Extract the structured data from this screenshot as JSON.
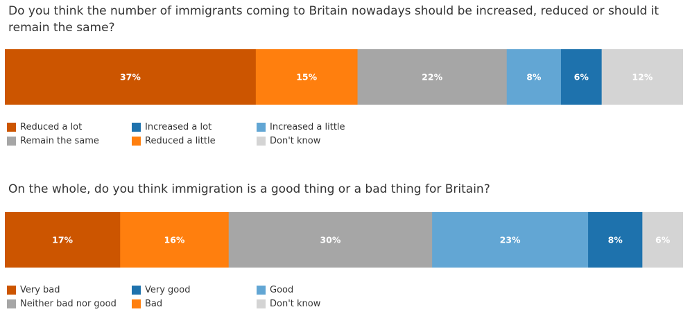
{
  "chart_data": [
    {
      "type": "bar",
      "orientation": "horizontal-stacked-100",
      "title": "Do you think the number of immigrants coming to Britain nowadays should be increased, reduced or should it remain the same?",
      "categories": [
        "Reduced a lot",
        "Reduced a little",
        "Remain the same",
        "Increased a little",
        "Increased a lot",
        "Don't know"
      ],
      "values": [
        37,
        15,
        22,
        8,
        6,
        12
      ],
      "labels": [
        "37%",
        "15%",
        "22%",
        "8%",
        "6%",
        "12%"
      ],
      "colors": [
        "#cc5500",
        "#ff7f0e",
        "#a6a6a6",
        "#62a6d4",
        "#1e72ad",
        "#d4d4d4"
      ],
      "legend_order": [
        0,
        2,
        4,
        1,
        3,
        5
      ],
      "legend_placement": "bottom"
    },
    {
      "type": "bar",
      "orientation": "horizontal-stacked-100",
      "title": "On the whole, do you think immigration is a good thing or a bad thing for Britain?",
      "categories": [
        "Very bad",
        "Bad",
        "Neither bad nor good",
        "Good",
        "Very good",
        "Don't know"
      ],
      "values": [
        17,
        16,
        30,
        23,
        8,
        6
      ],
      "labels": [
        "17%",
        "16%",
        "30%",
        "23%",
        "8%",
        "6%"
      ],
      "colors": [
        "#cc5500",
        "#ff7f0e",
        "#a6a6a6",
        "#62a6d4",
        "#1e72ad",
        "#d4d4d4"
      ],
      "legend_order": [
        0,
        2,
        4,
        1,
        3,
        5
      ],
      "legend_placement": "bottom"
    }
  ]
}
